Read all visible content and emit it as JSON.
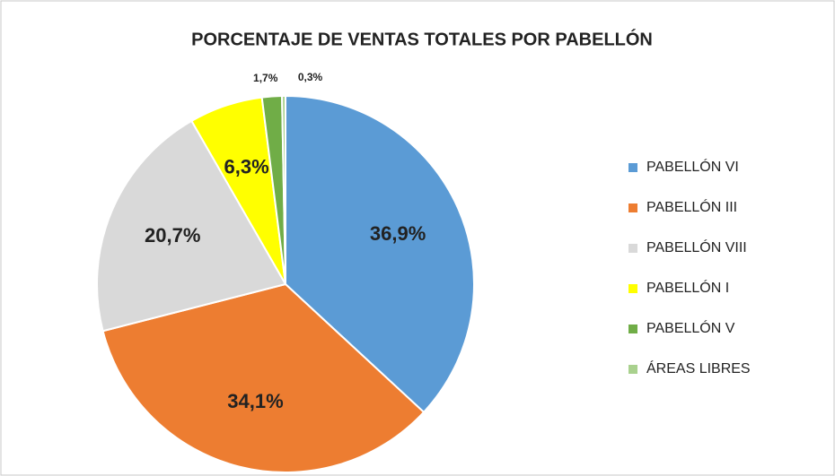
{
  "chart_data": {
    "type": "pie",
    "title": "PORCENTAJE DE VENTAS TOTALES POR PABELLÓN",
    "categories": [
      "PABELLÓN VI",
      "PABELLÓN III",
      "PABELLÓN VIII",
      "PABELLÓN I",
      "PABELLÓN V",
      "ÁREAS LIBRES"
    ],
    "values": [
      36.9,
      34.1,
      20.7,
      6.3,
      1.7,
      0.3
    ],
    "value_labels": [
      "36,9%",
      "34,1%",
      "20,7%",
      "6,3%",
      "1,7%",
      "0,3%"
    ],
    "colors": [
      "#5b9bd5",
      "#ed7d31",
      "#d9d9d9",
      "#ffff00",
      "#70ad47",
      "#a9d18e"
    ],
    "legend": "right"
  }
}
